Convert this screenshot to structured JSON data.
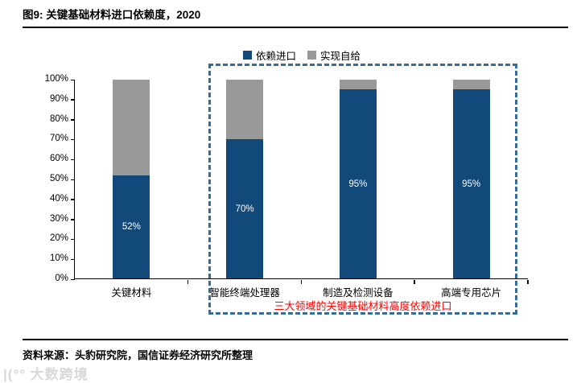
{
  "figure": {
    "title": "图9: 关键基础材料进口依赖度，2020",
    "source": "资料来源：头豹研究院，国信证券经济研究所整理",
    "watermark": "|(°° 大数跨境"
  },
  "annotation": {
    "text": "三大领域的关键基础材料高度依赖进口",
    "color": "#ff0000"
  },
  "colors": {
    "import_blue": "#11497b",
    "self_gray": "#999999",
    "highlight_box": "#376b99"
  },
  "chart_data": {
    "type": "bar",
    "stacked": true,
    "title": "关键基础材料进口依赖度，2020",
    "categories": [
      "关键材料",
      "智能终端处理器",
      "制造及检测设备",
      "高端专用芯片"
    ],
    "series": [
      {
        "name": "依赖进口",
        "color": "#11497b",
        "values": [
          52,
          70,
          95,
          95
        ]
      },
      {
        "name": "实现自给",
        "color": "#999999",
        "values": [
          48,
          30,
          5,
          5
        ]
      }
    ],
    "data_labels": [
      "52%",
      "70%",
      "95%",
      "95%"
    ],
    "y_tick_labels": [
      "0%",
      "10%",
      "20%",
      "30%",
      "40%",
      "50%",
      "60%",
      "70%",
      "80%",
      "90%",
      "100%"
    ],
    "ylim": [
      0,
      100
    ],
    "grid": false,
    "legend_position": "top",
    "highlighted_categories": [
      "智能终端处理器",
      "制造及检测设备",
      "高端专用芯片"
    ]
  }
}
